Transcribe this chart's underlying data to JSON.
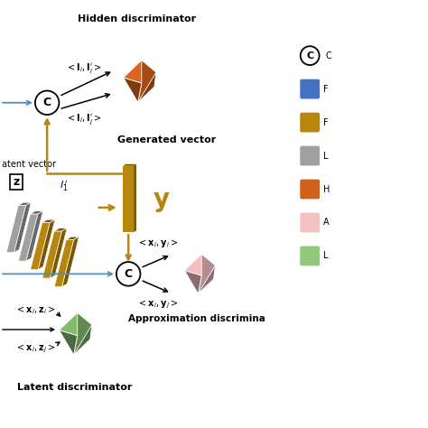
{
  "background_color": "#ffffff",
  "colors": {
    "orange_disc": "#D2601A",
    "gold": "#B8860B",
    "gray": "#A0A0A0",
    "pink": "#E8B4B8",
    "green": "#7FB069",
    "blue_arrow": "#4A90C4",
    "gold_arrow": "#B8860B",
    "black": "#000000",
    "legend_blue": "#4472C4",
    "legend_orange": "#CC5500",
    "legend_pink": "#F4C2C2",
    "legend_green": "#90C978"
  },
  "texts": {
    "hidden_disc": "Hidden discriminator",
    "generated_vec": "Generated vector",
    "latent_vec": "atent vector",
    "approx_disc": "Approximation discrimina",
    "latent_disc": "Latent discriminator"
  },
  "layout": {
    "figsize": [
      4.74,
      4.74
    ],
    "dpi": 100,
    "xlim": [
      0,
      10
    ],
    "ylim": [
      0,
      10
    ]
  }
}
